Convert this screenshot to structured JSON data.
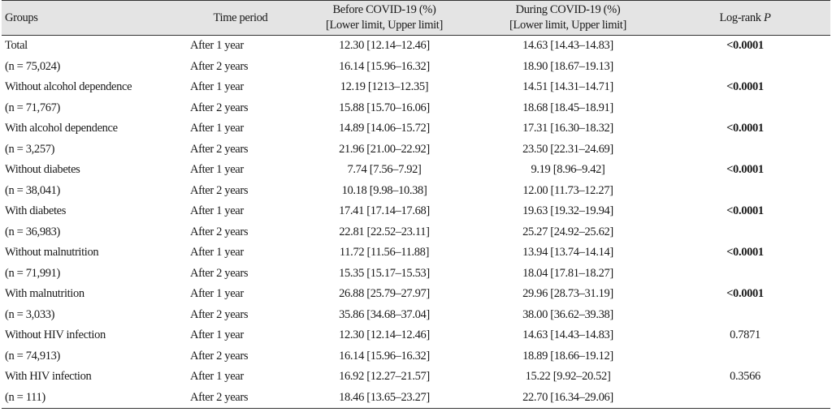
{
  "header": {
    "groups": "Groups",
    "time_period": "Time period",
    "before_line1": "Before COVID-19 (%)",
    "before_line2": "[Lower limit, Upper limit]",
    "during_line1": "During COVID-19 (%)",
    "during_line2": "[Lower limit, Upper limit]",
    "logrank_text": "Log-rank ",
    "logrank_p": "P"
  },
  "rows": [
    {
      "group_name": "Total",
      "group_n": "(n = 75,024)",
      "p": "<0.0001",
      "bold": true,
      "y1": {
        "period": "After 1 year",
        "before": "12.30 [12.14–12.46]",
        "during": "14.63 [14.43–14.83]"
      },
      "y2": {
        "period": "After 2 years",
        "before": "16.14 [15.96–16.32]",
        "during": "18.90 [18.67–19.13]"
      }
    },
    {
      "group_name": "Without alcohol dependence",
      "group_n": "(n = 71,767)",
      "p": "<0.0001",
      "bold": true,
      "y1": {
        "period": "After 1 year",
        "before": "12.19 [1213–12.35]",
        "during": "14.51 [14.31–14.71]"
      },
      "y2": {
        "period": "After 2 years",
        "before": "15.88 [15.70–16.06]",
        "during": "18.68 [18.45–18.91]"
      }
    },
    {
      "group_name": "With alcohol dependence",
      "group_n": "(n = 3,257)",
      "p": "<0.0001",
      "bold": true,
      "y1": {
        "period": "After 1 year",
        "before": "14.89 [14.06–15.72]",
        "during": "17.31 [16.30–18.32]"
      },
      "y2": {
        "period": "After 2 years",
        "before": "21.96 [21.00–22.92]",
        "during": "23.50 [22.31–24.69]"
      }
    },
    {
      "group_name": "Without diabetes",
      "group_n": "(n = 38,041)",
      "p": "<0.0001",
      "bold": true,
      "y1": {
        "period": "After 1 year",
        "before": "7.74 [7.56–7.92]",
        "during": "9.19 [8.96–9.42]"
      },
      "y2": {
        "period": "After 2 years",
        "before": "10.18 [9.98–10.38]",
        "during": "12.00 [11.73–12.27]"
      }
    },
    {
      "group_name": "With diabetes",
      "group_n": "(n = 36,983)",
      "p": "<0.0001",
      "bold": true,
      "y1": {
        "period": "After 1 year",
        "before": "17.41 [17.14–17.68]",
        "during": "19.63 [19.32–19.94]"
      },
      "y2": {
        "period": "After 2 years",
        "before": "22.81 [22.52–23.11]",
        "during": "25.27 [24.92–25.62]"
      }
    },
    {
      "group_name": "Without malnutrition",
      "group_n": "(n = 71,991)",
      "p": "<0.0001",
      "bold": true,
      "y1": {
        "period": "After 1 year",
        "before": "11.72 [11.56–11.88]",
        "during": "13.94 [13.74–14.14]"
      },
      "y2": {
        "period": "After 2 years",
        "before": "15.35 [15.17–15.53]",
        "during": "18.04 [17.81–18.27]"
      }
    },
    {
      "group_name": "With malnutrition",
      "group_n": "(n = 3,033)",
      "p": "<0.0001",
      "bold": true,
      "y1": {
        "period": "After 1 year",
        "before": "26.88 [25.79–27.97]",
        "during": "29.96 [28.73–31.19]"
      },
      "y2": {
        "period": "After 2 years",
        "before": "35.86 [34.68–37.04]",
        "during": "38.00 [36.62–39.38]"
      }
    },
    {
      "group_name": "Without HIV infection",
      "group_n": "(n = 74,913)",
      "p": "0.7871",
      "bold": false,
      "y1": {
        "period": "After 1 year",
        "before": "12.30 [12.14–12.46]",
        "during": "14.63 [14.43–14.83]"
      },
      "y2": {
        "period": "After 2 years",
        "before": "16.14 [15.96–16.32]",
        "during": "18.89 [18.66–19.12]"
      }
    },
    {
      "group_name": "With HIV infection",
      "group_n": "(n = 111)",
      "p": "0.3566",
      "bold": false,
      "y1": {
        "period": "After 1 year",
        "before": "16.92 [12.27–21.57]",
        "during": "15.22 [9.92–20.52]"
      },
      "y2": {
        "period": "After 2 years",
        "before": "18.46 [13.65–23.27]",
        "during": "22.70 [16.34–29.06]"
      }
    }
  ]
}
